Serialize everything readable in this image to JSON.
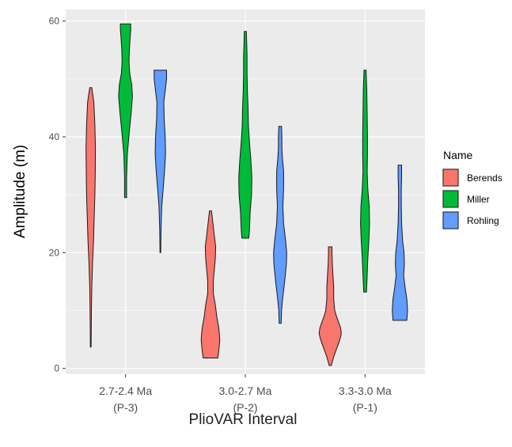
{
  "chart_data": {
    "type": "violin",
    "title": "",
    "xlabel": "PlioVAR Interval",
    "ylabel": "Amplitude (m)",
    "ylim": [
      -1,
      62
    ],
    "yticks": [
      0,
      20,
      40,
      60
    ],
    "grid": true,
    "legend": {
      "title": "Name",
      "placement": "right",
      "entries": [
        {
          "label": "Berends",
          "color": "#f8766d"
        },
        {
          "label": "Miller",
          "color": "#00ba38"
        },
        {
          "label": "Rohling",
          "color": "#619cff"
        }
      ]
    },
    "categories": [
      {
        "line1": "2.7-2.4 Ma",
        "line2": "(P-3)",
        "color": "#1f3a6e"
      },
      {
        "line1": "3.0-2.7 Ma",
        "line2": "(P-2)",
        "color": "#2aa7d8"
      },
      {
        "line1": "3.3-3.0 Ma",
        "line2": "(P-1)",
        "color": "#c45a1e"
      }
    ],
    "series": [
      {
        "name": "Berends",
        "color": "#f8766d",
        "groups": [
          {
            "min": 3.7,
            "max": 48.5,
            "profile": [
              [
                3.7,
                0.5
              ],
              [
                8,
                0.8
              ],
              [
                10,
                1
              ],
              [
                14,
                1.5
              ],
              [
                18,
                2.5
              ],
              [
                22,
                4
              ],
              [
                26,
                5
              ],
              [
                30,
                6
              ],
              [
                34,
                6.5
              ],
              [
                38,
                6.8
              ],
              [
                42,
                6
              ],
              [
                46,
                4.5
              ],
              [
                48.5,
                1.5
              ]
            ]
          },
          {
            "min": 1.8,
            "max": 27.2,
            "profile": [
              [
                1.8,
                10.5
              ],
              [
                3,
                12
              ],
              [
                5,
                13.5
              ],
              [
                7,
                12
              ],
              [
                9,
                9
              ],
              [
                11,
                7
              ],
              [
                13,
                4
              ],
              [
                15,
                4
              ],
              [
                17,
                5.5
              ],
              [
                19,
                7
              ],
              [
                21,
                7.5
              ],
              [
                23,
                5.5
              ],
              [
                25,
                3.5
              ],
              [
                27.2,
                1.5
              ]
            ]
          },
          {
            "min": 0.5,
            "max": 21.0,
            "profile": [
              [
                0.5,
                1.5
              ],
              [
                2,
                5
              ],
              [
                3,
                8
              ],
              [
                5,
                14
              ],
              [
                6,
                16
              ],
              [
                7,
                15
              ],
              [
                8,
                12
              ],
              [
                9,
                9
              ],
              [
                10,
                6.5
              ],
              [
                12,
                5
              ],
              [
                14,
                5
              ],
              [
                16,
                4
              ],
              [
                18,
                3
              ],
              [
                20,
                2.5
              ],
              [
                21,
                2.5
              ]
            ]
          }
        ]
      },
      {
        "name": "Miller",
        "color": "#00ba38",
        "groups": [
          {
            "min": 29.5,
            "max": 59.5,
            "profile": [
              [
                29.5,
                1.5
              ],
              [
                33,
                1.5
              ],
              [
                37,
                2.5
              ],
              [
                39,
                4
              ],
              [
                41,
                5.5
              ],
              [
                44,
                8
              ],
              [
                47,
                10
              ],
              [
                49,
                9
              ],
              [
                51,
                6
              ],
              [
                53,
                5
              ],
              [
                55,
                5.5
              ],
              [
                57,
                6.5
              ],
              [
                58.5,
                7.5
              ],
              [
                59.5,
                7.5
              ]
            ]
          },
          {
            "min": 22.5,
            "max": 58.2,
            "profile": [
              [
                22.5,
                5
              ],
              [
                24,
                6
              ],
              [
                27,
                7
              ],
              [
                30,
                9
              ],
              [
                33,
                9.5
              ],
              [
                36,
                8
              ],
              [
                39,
                6
              ],
              [
                42,
                4.5
              ],
              [
                45,
                4
              ],
              [
                48,
                3
              ],
              [
                51,
                2.5
              ],
              [
                54,
                2.5
              ],
              [
                56,
                2
              ],
              [
                58.2,
                1.5
              ]
            ]
          },
          {
            "min": 13.2,
            "max": 51.5,
            "profile": [
              [
                13.2,
                2
              ],
              [
                16,
                3
              ],
              [
                19,
                4
              ],
              [
                22,
                5.5
              ],
              [
                25,
                6.5
              ],
              [
                28,
                6
              ],
              [
                31,
                4
              ],
              [
                34,
                3
              ],
              [
                37,
                3.5
              ],
              [
                40,
                3.5
              ],
              [
                44,
                3
              ],
              [
                48,
                2.5
              ],
              [
                51.5,
                1.5
              ]
            ]
          }
        ]
      },
      {
        "name": "Rohling",
        "color": "#619cff",
        "groups": [
          {
            "min": 20.0,
            "max": 51.5,
            "profile": [
              [
                20,
                0.5
              ],
              [
                24,
                1
              ],
              [
                28,
                2
              ],
              [
                31,
                4
              ],
              [
                34,
                6
              ],
              [
                37,
                7.5
              ],
              [
                40,
                7
              ],
              [
                43,
                5.5
              ],
              [
                46,
                5
              ],
              [
                48,
                7
              ],
              [
                50,
                9
              ],
              [
                51.5,
                9
              ]
            ]
          },
          {
            "min": 7.8,
            "max": 41.8,
            "profile": [
              [
                7.8,
                1.5
              ],
              [
                10,
                2
              ],
              [
                12,
                3.5
              ],
              [
                15,
                6.5
              ],
              [
                18,
                9
              ],
              [
                20,
                9.5
              ],
              [
                22,
                8
              ],
              [
                25,
                5
              ],
              [
                28,
                4
              ],
              [
                31,
                5
              ],
              [
                34,
                5
              ],
              [
                36,
                3.5
              ],
              [
                38,
                2.5
              ],
              [
                40,
                2.5
              ],
              [
                41.8,
                2
              ]
            ]
          },
          {
            "min": 8.3,
            "max": 35.1,
            "profile": [
              [
                8.3,
                10
              ],
              [
                10,
                11
              ],
              [
                12,
                10
              ],
              [
                14,
                7.5
              ],
              [
                16,
                5.5
              ],
              [
                18,
                6.5
              ],
              [
                20,
                6
              ],
              [
                22,
                4
              ],
              [
                25,
                2.5
              ],
              [
                28,
                2
              ],
              [
                31,
                2
              ],
              [
                33,
                2.5
              ],
              [
                35.1,
                2.5
              ]
            ]
          }
        ]
      }
    ]
  }
}
